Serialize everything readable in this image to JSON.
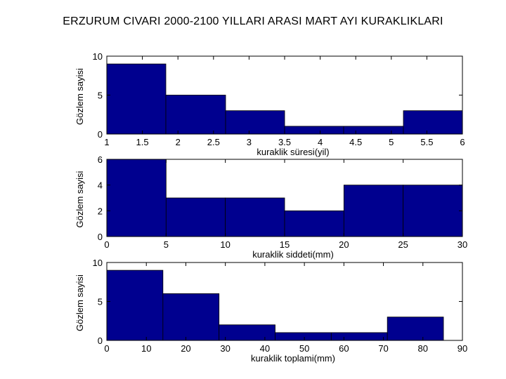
{
  "title": "ERZURUM CIVARI 2000-2100 YILLARI ARASI MART AYI KURAKLIKLARI",
  "colors": {
    "bar_fill": "#00008f",
    "bar_edge": "#000000",
    "axis": "#000000"
  },
  "chart_data": [
    {
      "type": "bar",
      "xlabel": "kuraklik süresi(yil)",
      "ylabel": "Gözlem sayisi",
      "xlim": [
        1,
        6
      ],
      "ylim": [
        0,
        10
      ],
      "xticks": [
        "1",
        "1.5",
        "2",
        "2.5",
        "3",
        "3.5",
        "4",
        "4.5",
        "5",
        "5.5",
        "6"
      ],
      "yticks": [
        "0",
        "5",
        "10"
      ],
      "bins": [
        {
          "x0": 1.0,
          "x1": 1.83,
          "value": 9
        },
        {
          "x0": 1.83,
          "x1": 2.67,
          "value": 5
        },
        {
          "x0": 2.67,
          "x1": 3.5,
          "value": 3
        },
        {
          "x0": 3.5,
          "x1": 4.33,
          "value": 1
        },
        {
          "x0": 4.33,
          "x1": 5.17,
          "value": 1
        },
        {
          "x0": 5.17,
          "x1": 6.0,
          "value": 3
        }
      ]
    },
    {
      "type": "bar",
      "xlabel": "kuraklik siddeti(mm)",
      "ylabel": "Gözlem sayisi",
      "xlim": [
        0,
        30
      ],
      "ylim": [
        0,
        6
      ],
      "xticks": [
        "0",
        "5",
        "10",
        "15",
        "20",
        "25",
        "30"
      ],
      "yticks": [
        "0",
        "2",
        "4",
        "6"
      ],
      "bins": [
        {
          "x0": 0.0,
          "x1": 5.0,
          "value": 6
        },
        {
          "x0": 5.0,
          "x1": 10.0,
          "value": 3
        },
        {
          "x0": 10.0,
          "x1": 15.0,
          "value": 3
        },
        {
          "x0": 15.0,
          "x1": 20.0,
          "value": 2
        },
        {
          "x0": 20.0,
          "x1": 25.0,
          "value": 4
        },
        {
          "x0": 25.0,
          "x1": 30.0,
          "value": 4
        }
      ]
    },
    {
      "type": "bar",
      "xlabel": "kuraklik toplami(mm)",
      "ylabel": "Gözlem sayisi",
      "xlim": [
        0,
        90
      ],
      "ylim": [
        0,
        10
      ],
      "xticks": [
        "0",
        "10",
        "20",
        "30",
        "40",
        "50",
        "60",
        "70",
        "80",
        "90"
      ],
      "yticks": [
        "0",
        "5",
        "10"
      ],
      "bins": [
        {
          "x0": 0.0,
          "x1": 14.2,
          "value": 9
        },
        {
          "x0": 14.2,
          "x1": 28.4,
          "value": 6
        },
        {
          "x0": 28.4,
          "x1": 42.6,
          "value": 2
        },
        {
          "x0": 42.6,
          "x1": 56.8,
          "value": 1
        },
        {
          "x0": 56.8,
          "x1": 71.0,
          "value": 1
        },
        {
          "x0": 71.0,
          "x1": 85.2,
          "value": 3
        }
      ]
    }
  ]
}
